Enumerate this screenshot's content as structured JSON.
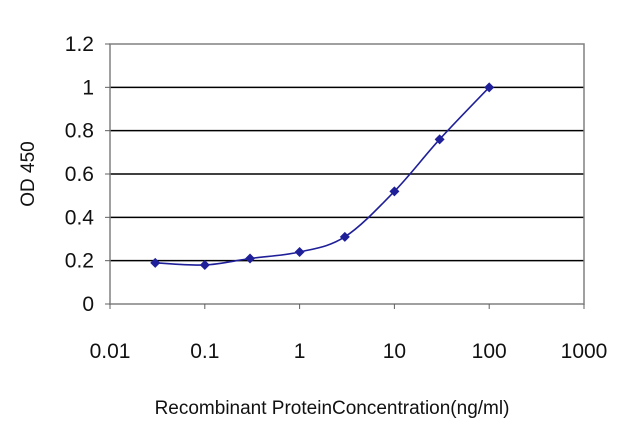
{
  "chart_data": {
    "type": "line",
    "title": "",
    "xlabel": "Recombinant ProteinConcentration(ng/ml)",
    "ylabel": "OD 450",
    "x_scale": "log",
    "xlim": [
      0.01,
      1000
    ],
    "ylim": [
      0,
      1.2
    ],
    "x_ticks": [
      "0.01",
      "0.1",
      "1",
      "10",
      "100",
      "1000"
    ],
    "y_ticks": [
      "0",
      "0.2",
      "0.4",
      "0.6",
      "0.8",
      "1",
      "1.2"
    ],
    "grid": "horizontal",
    "legend": "none",
    "series": [
      {
        "x": [
          0.03,
          0.1,
          0.3,
          1,
          3,
          10,
          30,
          100
        ],
        "y": [
          0.19,
          0.18,
          0.21,
          0.24,
          0.31,
          0.52,
          0.76,
          1.0
        ]
      }
    ],
    "colors": {
      "series": "#1f1f99",
      "grid": "#000000",
      "plot_background": "#ffffff"
    }
  }
}
